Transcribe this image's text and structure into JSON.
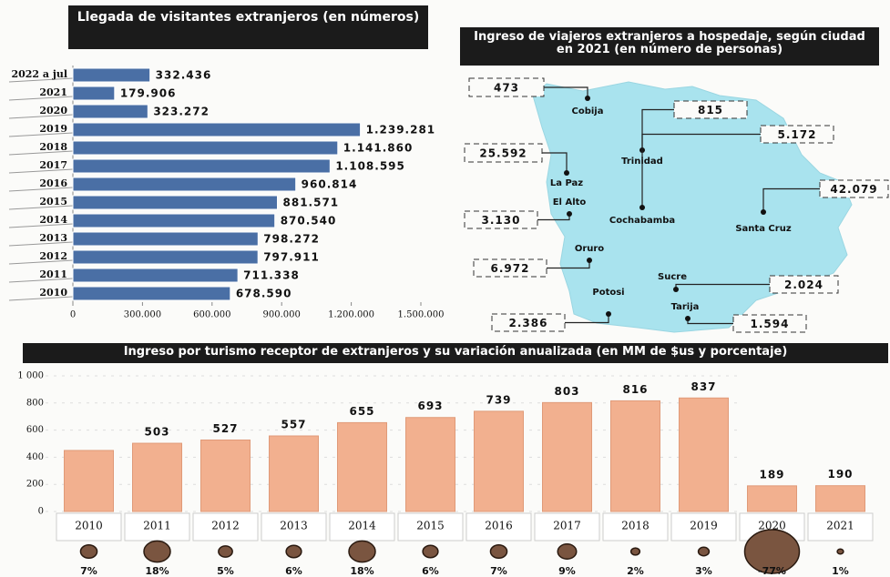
{
  "chart_data": [
    {
      "type": "hbar",
      "title": "Llegada de visitantes extranjeros (en números)",
      "categories": [
        "2022 a jul",
        "2021",
        "2020",
        "2019",
        "2018",
        "2017",
        "2016",
        "2015",
        "2014",
        "2013",
        "2012",
        "2011",
        "2010"
      ],
      "values": [
        332436,
        179906,
        323272,
        1239281,
        1141860,
        1108595,
        960814,
        881571,
        870540,
        798272,
        797911,
        711338,
        678590
      ],
      "value_labels": [
        "332.436",
        "179.906",
        "323.272",
        "1.239.281",
        "1.141.860",
        "1.108.595",
        "960.814",
        "881.571",
        "870.540",
        "798.272",
        "797.911",
        "711.338",
        "678.590"
      ],
      "color": "#4a6fa5",
      "xlim": [
        0,
        1500000
      ],
      "xticks": [
        0,
        {
          "value": 300000,
          "label": "300.000"
        },
        {
          "value": 600000,
          "label": "600.000"
        },
        {
          "value": 900000,
          "label": "900.000"
        },
        {
          "value": 1200000,
          "label": "1.200.000"
        },
        {
          "value": 1500000,
          "label": "1.500.000"
        }
      ]
    },
    {
      "type": "map",
      "title": "Ingreso de viajeros extranjeros a hospedaje, según ciudad en 2021 (en número de personas)",
      "categories": [
        "Cobija",
        "Trinidad",
        "La Paz",
        "Cochabamba",
        "Santa Cruz",
        "El Alto",
        "Oruro",
        "Sucre",
        "Potosi",
        "Tarija"
      ],
      "values": [
        473,
        815,
        25592,
        5172,
        42079,
        3130,
        6972,
        2024,
        2386,
        1594
      ],
      "value_labels": [
        "473",
        "815",
        "25.592",
        "5.172",
        "42.079",
        "3.130",
        "6.972",
        "2.024",
        "2.386",
        "1.594"
      ],
      "color": "#a9e3ee"
    },
    {
      "type": "bar",
      "title": "Ingreso por turismo receptor de extranjeros y su variación anualizada (en MM de $us y porcentaje)",
      "categories": [
        "2010",
        "2011",
        "2012",
        "2013",
        "2014",
        "2015",
        "2016",
        "2017",
        "2018",
        "2019",
        "2020",
        "2021"
      ],
      "series": [
        {
          "values": [
            450,
            503,
            527,
            557,
            655,
            693,
            739,
            803,
            816,
            837,
            189,
            190
          ],
          "value_labels": [
            null,
            "503",
            "527",
            "557",
            "655",
            "693",
            "739",
            "803",
            "816",
            "837",
            "189",
            "190"
          ],
          "color": "#f2b08f"
        },
        {
          "values": [
            7,
            18,
            5,
            6,
            18,
            6,
            7,
            9,
            2,
            3,
            -77,
            1
          ],
          "value_labels": [
            "7%",
            "18%",
            "5%",
            "6%",
            "18%",
            "6%",
            "7%",
            "9%",
            "2%",
            "3%",
            "-77%",
            "1%"
          ],
          "color": "#7a5540"
        }
      ],
      "ylim": [
        0,
        1000
      ],
      "yticks": [
        0,
        200,
        400,
        600,
        800,
        {
          "value": 1000,
          "label": "1 000"
        }
      ]
    }
  ]
}
